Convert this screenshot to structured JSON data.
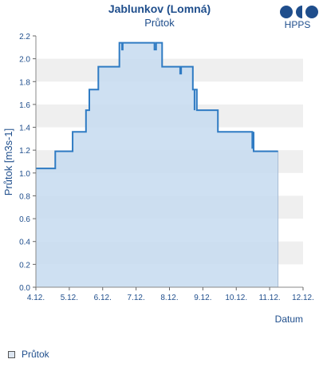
{
  "header": {
    "title": "Jablunkov (Lomná)",
    "subtitle": "Průtok",
    "logo_text": "HPPS"
  },
  "legend": {
    "label": "Průtok"
  },
  "colors": {
    "line": "#2f7bc3",
    "fill": "#c5daf0",
    "band": "#efefef",
    "text": "#1f4e8c"
  },
  "chart_data": {
    "type": "area",
    "title": "Jablunkov (Lomná)",
    "subtitle": "Průtok",
    "xlabel": "Datum",
    "ylabel": "Průtok [m3s-1]",
    "xlim": [
      4,
      12
    ],
    "ylim": [
      0,
      2.2
    ],
    "x_ticks": [
      4,
      5,
      6,
      7,
      8,
      9,
      10,
      11,
      12
    ],
    "x_tick_labels": [
      "4.12.",
      "5.12.",
      "6.12.",
      "7.12.",
      "8.12.",
      "9.12.",
      "10.12.",
      "11.12.",
      "12.12."
    ],
    "y_ticks": [
      0,
      0.2,
      0.4,
      0.6,
      0.8,
      1.0,
      1.2,
      1.4,
      1.6,
      1.8,
      2.0,
      2.2
    ],
    "y_tick_labels": [
      "0.0",
      "0.2",
      "0.4",
      "0.6",
      "0.8",
      "1.0",
      "1.2",
      "1.4",
      "1.6",
      "1.8",
      "2.0",
      "2.2"
    ],
    "grid": "horizontal-bands",
    "legend_position": "bottom-left",
    "series": [
      {
        "name": "Průtok",
        "step": true,
        "x": [
          4.0,
          4.58,
          5.1,
          5.5,
          5.6,
          5.7,
          5.87,
          5.95,
          6.03,
          6.05,
          6.5,
          6.58,
          6.6,
          6.6,
          6.68,
          6.68,
          7.55,
          7.55,
          7.6,
          7.6,
          7.78,
          7.78,
          8.32,
          8.32,
          8.35,
          8.35,
          8.42,
          8.42,
          8.7,
          8.7,
          8.75,
          8.75,
          8.82,
          8.82,
          9.15,
          9.15,
          9.35,
          9.35,
          9.45,
          9.45,
          9.55,
          9.55,
          10.48,
          10.48,
          10.52,
          10.52,
          10.55,
          10.55,
          11.25
        ],
        "y": [
          1.04,
          1.19,
          1.36,
          1.55,
          1.73,
          1.73,
          1.93,
          1.93,
          1.93,
          1.93,
          2.14,
          2.08,
          2.14,
          2.14,
          2.14,
          2.14,
          2.14,
          2.08,
          2.14,
          2.14,
          1.93,
          1.93,
          1.93,
          1.87,
          1.93,
          1.93,
          1.93,
          1.93,
          1.73,
          1.73,
          1.55,
          1.73,
          1.55,
          1.55,
          1.55,
          1.55,
          1.55,
          1.55,
          1.36,
          1.36,
          1.36,
          1.36,
          1.36,
          1.22,
          1.36,
          1.19,
          1.19,
          1.19,
          1.19
        ]
      }
    ]
  }
}
